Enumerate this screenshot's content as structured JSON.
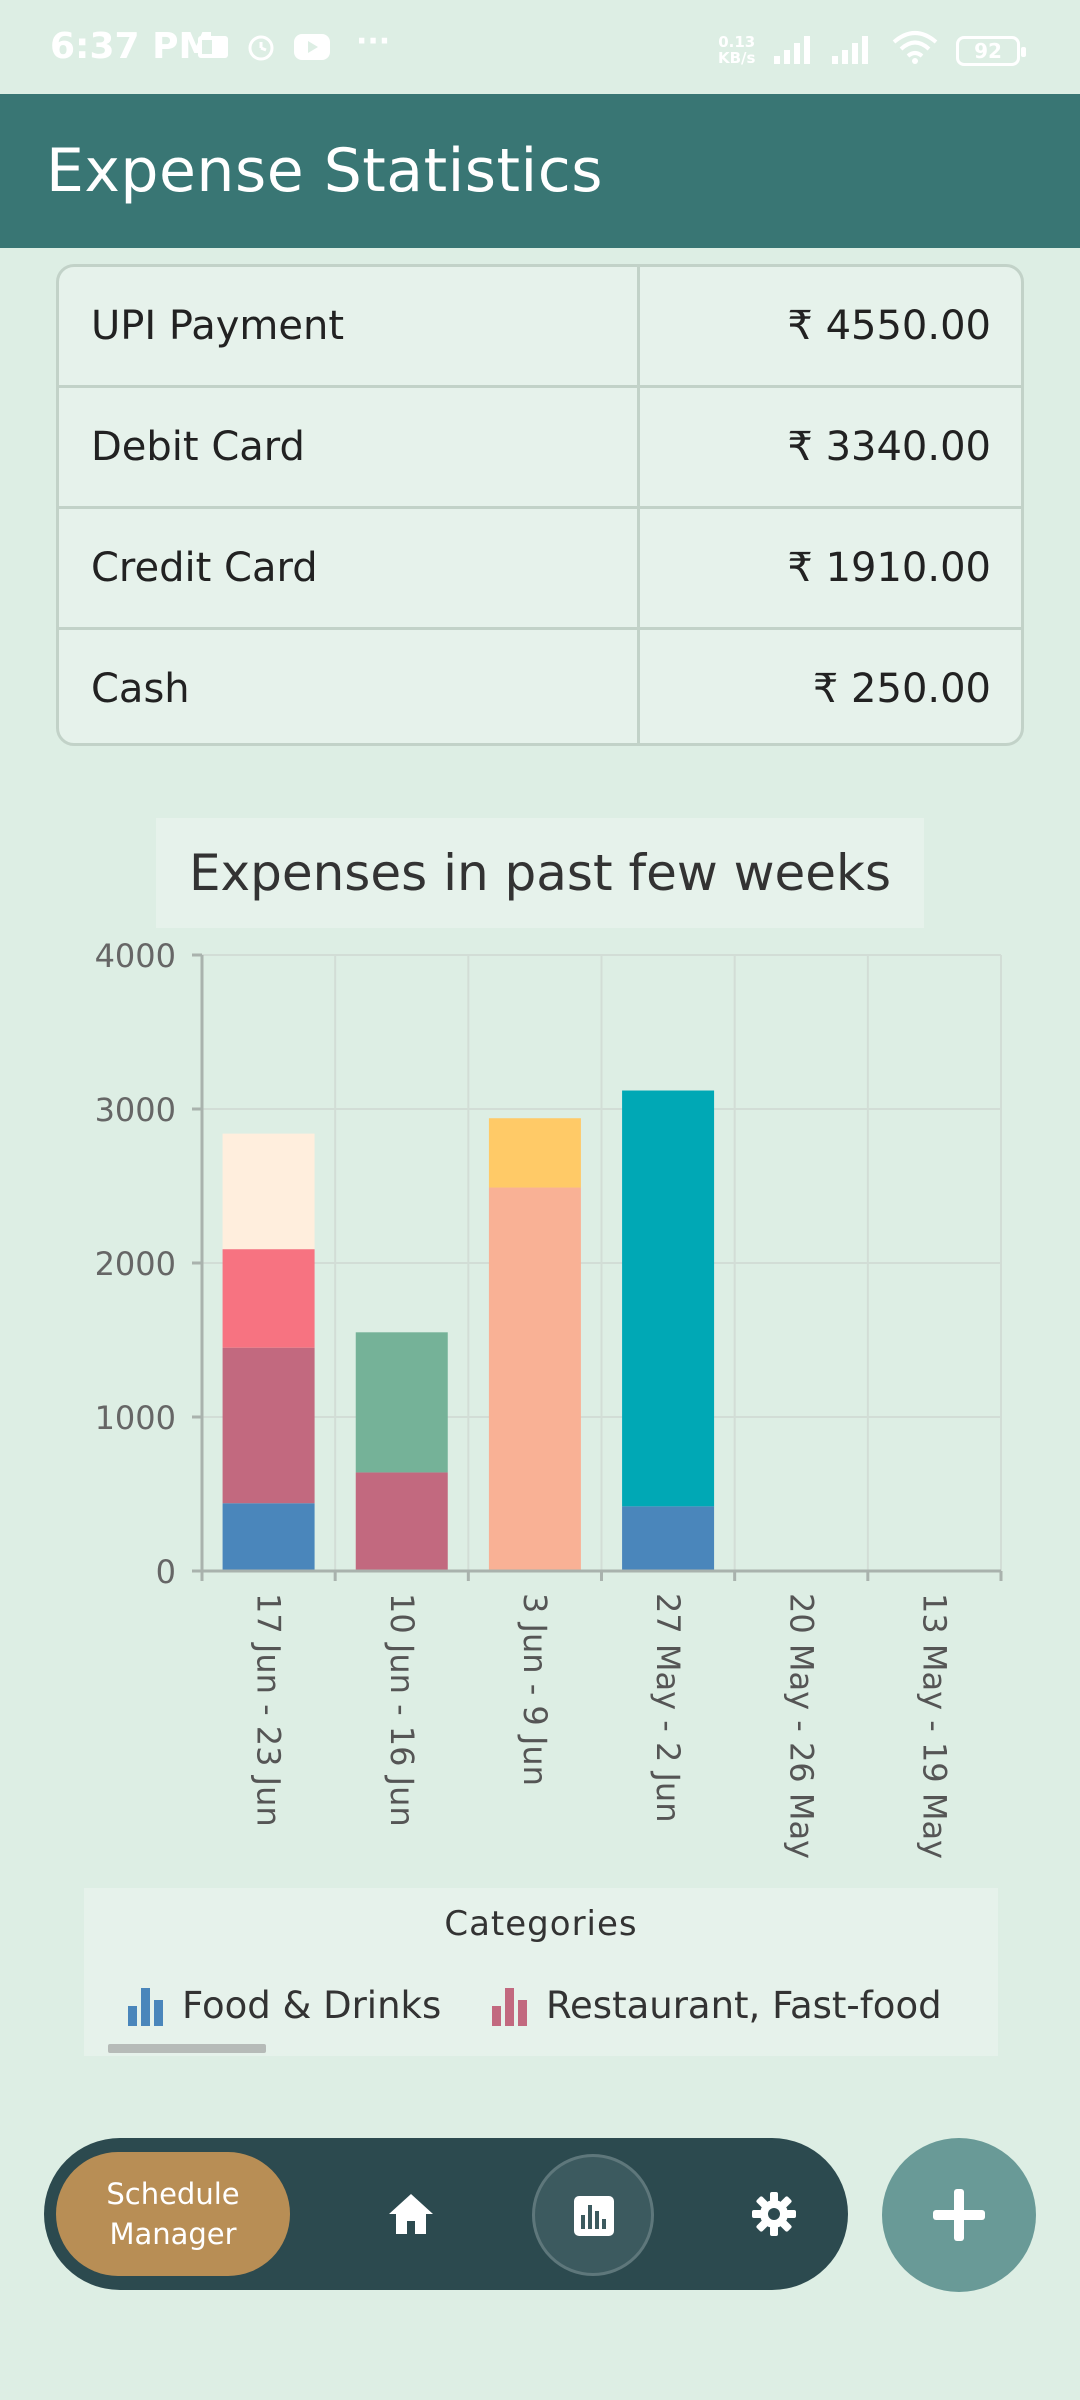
{
  "status_bar": {
    "time": "6:37 PM",
    "net_speed_value": "0.13",
    "net_speed_unit": "KB/s",
    "battery": "92",
    "more": "···"
  },
  "app_bar": {
    "title": "Expense Statistics"
  },
  "payments": [
    {
      "method": "UPI Payment",
      "amount": "₹ 4550.00"
    },
    {
      "method": "Debit Card",
      "amount": "₹ 3340.00"
    },
    {
      "method": "Credit Card",
      "amount": "₹ 1910.00"
    },
    {
      "method": "Cash",
      "amount": "₹ 250.00"
    }
  ],
  "chart_data": {
    "type": "bar",
    "stacked": true,
    "title": "Expenses in past few weeks",
    "categories": [
      "17 Jun - 23 Jun",
      "10 Jun - 16 Jun",
      "3 Jun - 9 Jun",
      "27 May - 2 Jun",
      "20 May - 26 May",
      "13 May - 19 May"
    ],
    "ylim": [
      0,
      4000
    ],
    "yticks": [
      "0",
      "1000",
      "2000",
      "3000",
      "4000"
    ],
    "grid": true,
    "series": [
      {
        "name": "Food & Drinks",
        "color": "#4a86bb",
        "values": [
          440,
          0,
          0,
          420,
          0,
          0
        ]
      },
      {
        "name": "Restaurant, Fast-food",
        "color": "#c2697f",
        "values": [
          1010,
          640,
          0,
          0,
          0,
          0
        ]
      },
      {
        "color": "#f77381",
        "values": [
          640,
          0,
          0,
          0,
          0,
          0
        ]
      },
      {
        "color": "#ffeedd",
        "values": [
          750,
          0,
          0,
          0,
          0,
          0
        ]
      },
      {
        "color": "#75b298",
        "values": [
          0,
          910,
          0,
          0,
          0,
          0
        ]
      },
      {
        "color": "#f9b195",
        "values": [
          0,
          0,
          2490,
          0,
          0,
          0
        ]
      },
      {
        "color": "#ffca67",
        "values": [
          0,
          0,
          450,
          0,
          0,
          0
        ]
      },
      {
        "color": "#00a8b5",
        "values": [
          0,
          0,
          0,
          2700,
          0,
          0
        ]
      }
    ],
    "legend": {
      "title": "Categories",
      "placement": "bottom",
      "items": [
        {
          "label": "Food & Drinks",
          "color": "#4a86bb"
        },
        {
          "label": "Restaurant, Fast-food",
          "color": "#c2697f"
        }
      ]
    }
  },
  "bottom_nav": {
    "schedule_label_1": "Schedule",
    "schedule_label_2": "Manager",
    "icons": [
      "home-icon",
      "bar-chart-icon",
      "gear-icon"
    ],
    "fab_icon": "plus-icon"
  }
}
